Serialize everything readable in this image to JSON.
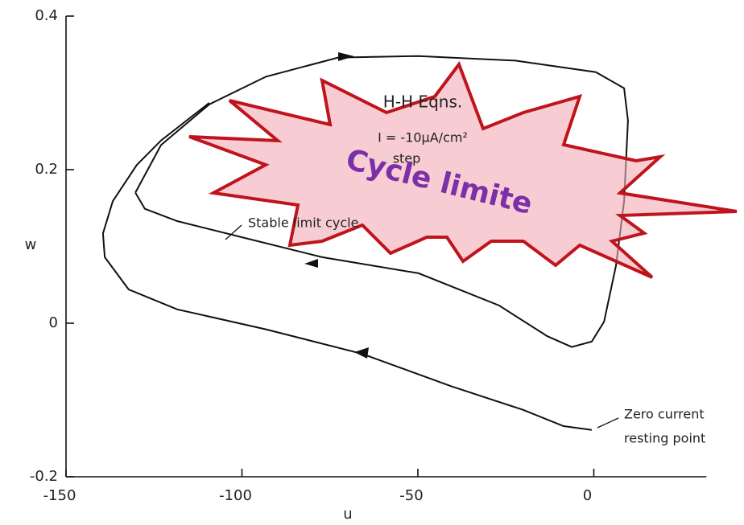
{
  "chart_data": {
    "type": "line",
    "xlabel": "u",
    "ylabel": "w",
    "xlim": [
      -150,
      32
    ],
    "ylim": [
      -0.2,
      0.4
    ],
    "xticks": [
      -150,
      -100,
      -50,
      0
    ],
    "yticks": [
      -0.2,
      0,
      0.2,
      0.4
    ],
    "color": "#111111",
    "series": [
      {
        "x": [
          -130.3,
          -123,
          -109.3,
          -93.2,
          -72.7,
          -49.8,
          -22.3,
          0.6,
          8.6,
          9.7,
          8.6,
          6.3,
          2.9,
          -0.6,
          -6.3,
          -13.2,
          -26.9,
          -49.8,
          -77.2,
          -100.1,
          -118.4,
          -127.6,
          -130.3
        ],
        "values": [
          0.17,
          0.232,
          0.285,
          0.321,
          0.346,
          0.348,
          0.342,
          0.327,
          0.306,
          0.264,
          0.159,
          0.075,
          0.002,
          -0.024,
          -0.031,
          -0.017,
          0.023,
          0.065,
          0.086,
          0.112,
          0.133,
          0.149,
          0.17
        ]
      },
      {
        "x": [
          -0.6,
          -8.6,
          -20,
          -40.6,
          -65.8,
          -93.2,
          -118.4,
          -132.2,
          -139,
          -139.5,
          -136.7,
          -129.9,
          -123,
          -109.3
        ],
        "values": [
          -0.139,
          -0.134,
          -0.113,
          -0.082,
          -0.04,
          -0.008,
          0.018,
          0.044,
          0.086,
          0.117,
          0.159,
          0.206,
          0.238,
          0.287
        ]
      }
    ],
    "annotations": [
      "H-H Eqns.",
      "I = -10μA/cm²",
      "step",
      "Stable limit cycle",
      "Zero current",
      "resting point",
      "Cycle limite"
    ]
  }
}
